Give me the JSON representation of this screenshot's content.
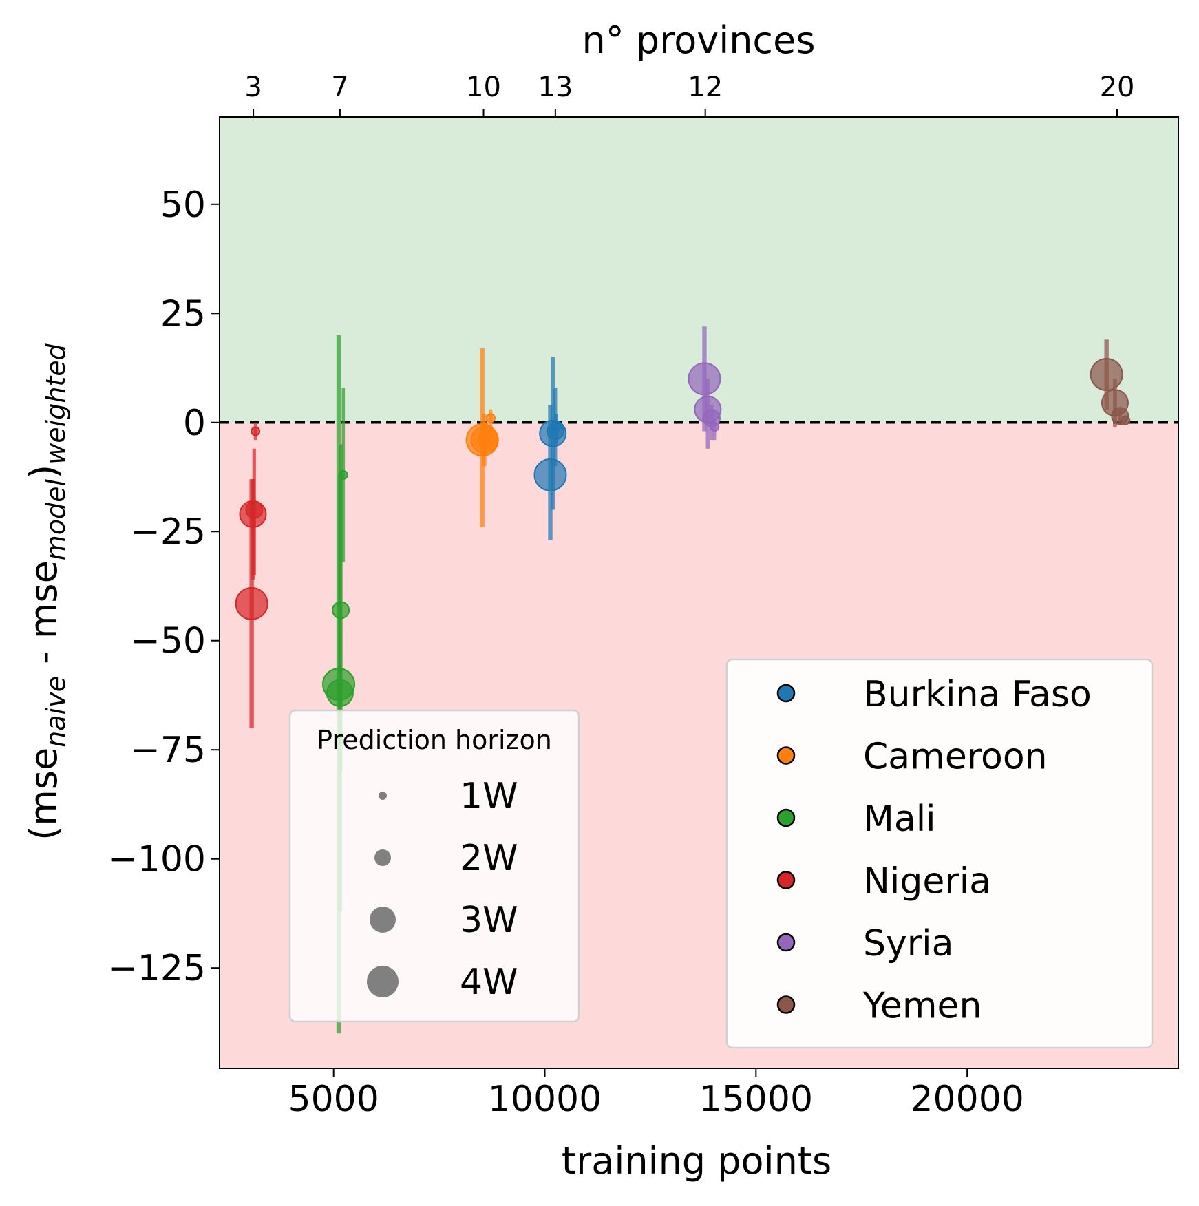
{
  "chart_data": {
    "type": "scatter",
    "xlabel": "training points",
    "ylabel_main": "(mse",
    "ylabel_sub1": "naive",
    "ylabel_mid": " - mse",
    "ylabel_sub2": "model",
    "ylabel_close": ")",
    "ylabel_sub3": "weighted",
    "top_xlabel": "n° provinces",
    "xlim": [
      2300,
      25000
    ],
    "ylim": [
      -148,
      70
    ],
    "x_ticks": [
      5000,
      10000,
      15000,
      20000
    ],
    "y_ticks": [
      50,
      25,
      0,
      -25,
      -50,
      -75,
      -100,
      -125
    ],
    "y_tick_labels": [
      "50",
      "25",
      "0",
      "−25",
      "−50",
      "−75",
      "−100",
      "−125"
    ],
    "top_ticks": [
      {
        "x": 3100,
        "label": "3"
      },
      {
        "x": 5150,
        "label": "7"
      },
      {
        "x": 8550,
        "label": "10"
      },
      {
        "x": 10250,
        "label": "13"
      },
      {
        "x": 13800,
        "label": "12"
      },
      {
        "x": 23550,
        "label": "20"
      }
    ],
    "zero_line": 0,
    "regions": {
      "positive": "#d9ecd9",
      "negative": "#fdd9da"
    },
    "size_legend": {
      "title": "Prediction horizon",
      "entries": [
        {
          "label": "1W",
          "horizon": 1
        },
        {
          "label": "2W",
          "horizon": 2
        },
        {
          "label": "3W",
          "horizon": 3
        },
        {
          "label": "4W",
          "horizon": 4
        }
      ]
    },
    "series": [
      {
        "name": "Burkina Faso",
        "color": "#1f77b4",
        "points": [
          {
            "x": 10280,
            "y": -1,
            "h": 1,
            "lo": -5,
            "hi": 2
          },
          {
            "x": 10250,
            "y": -2,
            "h": 2,
            "lo": -10,
            "hi": 8
          },
          {
            "x": 10190,
            "y": -2.5,
            "h": 3,
            "lo": -20,
            "hi": 15
          },
          {
            "x": 10130,
            "y": -12,
            "h": 4,
            "lo": -27,
            "hi": 4
          }
        ]
      },
      {
        "name": "Cameroon",
        "color": "#ff7f0e",
        "points": [
          {
            "x": 8720,
            "y": 1,
            "h": 1,
            "lo": -2,
            "hi": 3
          },
          {
            "x": 8620,
            "y": -4,
            "h": 2,
            "lo": -7,
            "hi": 0
          },
          {
            "x": 8570,
            "y": -4,
            "h": 3,
            "lo": -10,
            "hi": 2
          },
          {
            "x": 8520,
            "y": -4,
            "h": 4,
            "lo": -24,
            "hi": 17
          }
        ]
      },
      {
        "name": "Mali",
        "color": "#2ca02c",
        "points": [
          {
            "x": 5230,
            "y": -12,
            "h": 1,
            "lo": -32,
            "hi": 8
          },
          {
            "x": 5170,
            "y": -43,
            "h": 2,
            "lo": -80,
            "hi": -5
          },
          {
            "x": 5150,
            "y": -62,
            "h": 3,
            "lo": -112,
            "hi": -12
          },
          {
            "x": 5120,
            "y": -60,
            "h": 4,
            "lo": -140,
            "hi": 20
          }
        ]
      },
      {
        "name": "Nigeria",
        "color": "#d62728",
        "points": [
          {
            "x": 3150,
            "y": -2,
            "h": 1,
            "lo": -4,
            "hi": 0
          },
          {
            "x": 3120,
            "y": -20,
            "h": 2,
            "lo": -35,
            "hi": -6
          },
          {
            "x": 3090,
            "y": -21,
            "h": 3,
            "lo": -36,
            "hi": -13
          },
          {
            "x": 3060,
            "y": -41.5,
            "h": 4,
            "lo": -70,
            "hi": -13
          }
        ]
      },
      {
        "name": "Syria",
        "color": "#9467bd",
        "points": [
          {
            "x": 14020,
            "y": -1,
            "h": 1,
            "lo": -4,
            "hi": 1
          },
          {
            "x": 13950,
            "y": 1,
            "h": 2,
            "lo": -4,
            "hi": 4
          },
          {
            "x": 13860,
            "y": 3,
            "h": 3,
            "lo": -6,
            "hi": 10
          },
          {
            "x": 13780,
            "y": 10,
            "h": 4,
            "lo": -2,
            "hi": 22
          }
        ]
      },
      {
        "name": "Yemen",
        "color": "#8c564b",
        "points": [
          {
            "x": 23750,
            "y": 0.5,
            "h": 1,
            "lo": 0,
            "hi": 1
          },
          {
            "x": 23620,
            "y": 1.5,
            "h": 2,
            "lo": 0,
            "hi": 3
          },
          {
            "x": 23500,
            "y": 4.5,
            "h": 3,
            "lo": -1,
            "hi": 10
          },
          {
            "x": 23300,
            "y": 11,
            "h": 4,
            "lo": 3,
            "hi": 19
          }
        ]
      }
    ]
  }
}
